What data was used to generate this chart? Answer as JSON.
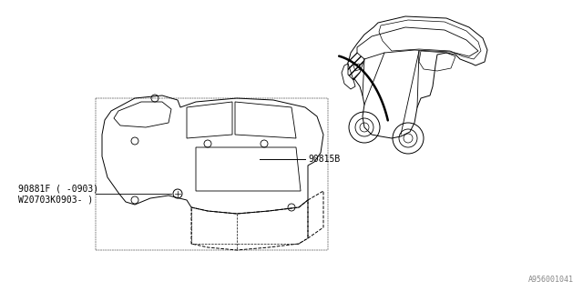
{
  "bg_color": "#ffffff",
  "part_label_1": "90815B",
  "part_label_2": "90881F ( -0903)",
  "part_label_3": "W20703K0903- )",
  "watermark": "A956001041",
  "line_color": "#000000",
  "fig_width": 6.4,
  "fig_height": 3.2,
  "dpi": 100
}
